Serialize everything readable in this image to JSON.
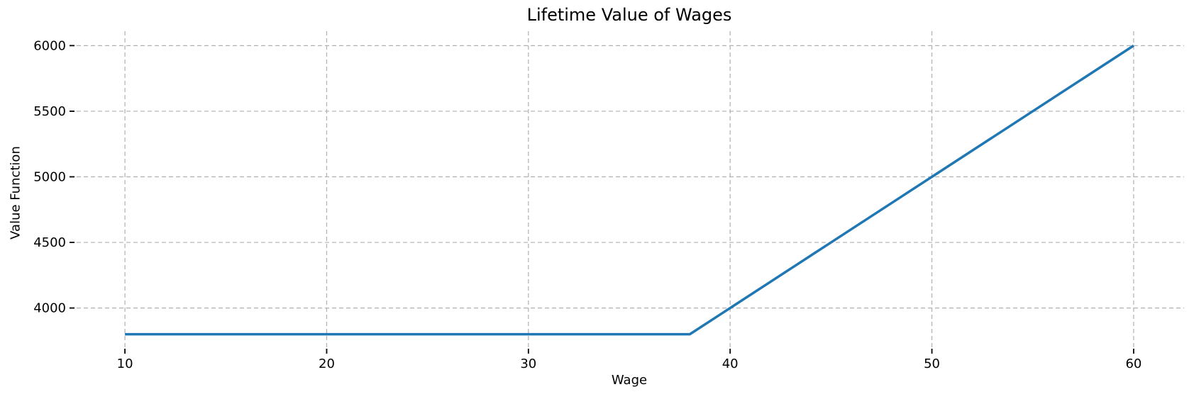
{
  "figure": {
    "background": "#ffffff",
    "text_color": "#000000"
  },
  "chart_data": {
    "type": "line",
    "title": "Lifetime Value of Wages",
    "xlabel": "Wage",
    "ylabel": "Value Function",
    "x_ticks": [
      10,
      20,
      30,
      40,
      50,
      60
    ],
    "y_ticks": [
      4000,
      4500,
      5000,
      5500,
      6000
    ],
    "xlim": [
      7.5,
      62.5
    ],
    "ylim": [
      3690,
      6110
    ],
    "grid": true,
    "grid_style": "dashed",
    "grid_color": "#b0b0b0",
    "legend": "none",
    "spines": false,
    "series": [
      {
        "name": "value-function",
        "color": "#1f77b4",
        "line_width": 3.5,
        "x": [
          10,
          15,
          20,
          25,
          30,
          35,
          38,
          40,
          45,
          50,
          55,
          60
        ],
        "y": [
          3800,
          3800,
          3800,
          3800,
          3800,
          3800,
          3800,
          4000,
          4500,
          5000,
          5500,
          6000
        ]
      }
    ]
  }
}
